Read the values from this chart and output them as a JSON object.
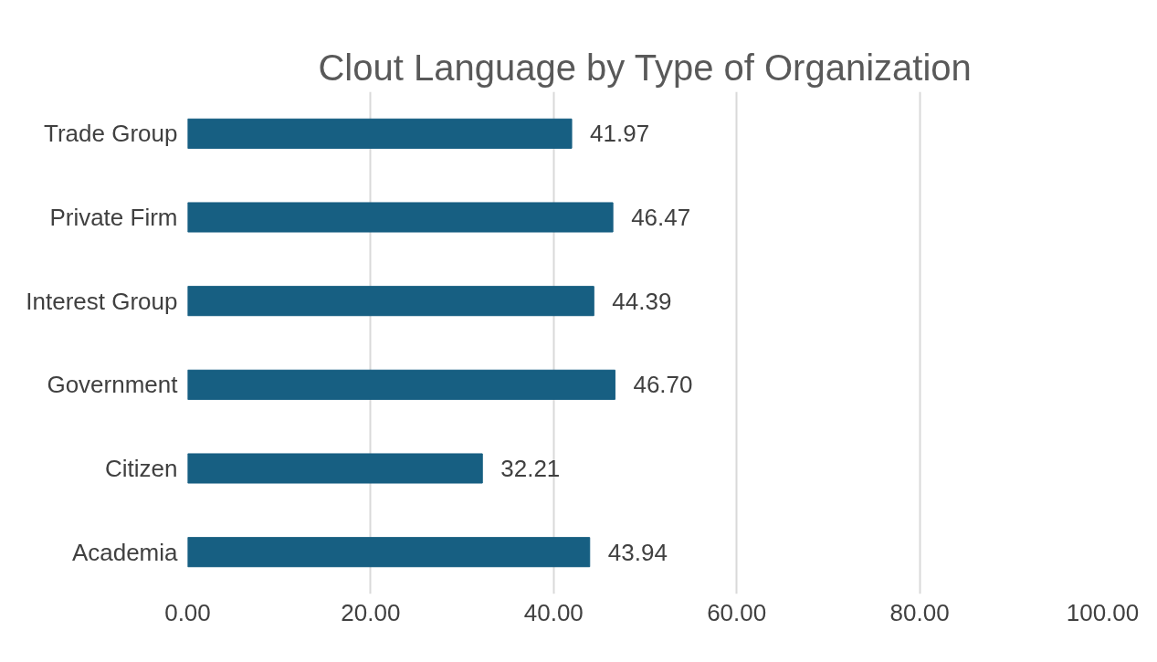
{
  "chart_data": {
    "type": "bar",
    "orientation": "horizontal",
    "title": "Clout Language by Type of Organization",
    "categories": [
      "Trade Group",
      "Private Firm",
      "Interest Group",
      "Government",
      "Citizen",
      "Academia"
    ],
    "values": [
      41.97,
      46.47,
      44.39,
      46.7,
      32.21,
      43.94
    ],
    "value_labels": [
      "41.97",
      "46.47",
      "44.39",
      "46.70",
      "32.21",
      "43.94"
    ],
    "color": "#175f82",
    "xlim": [
      0,
      100
    ],
    "xticks": [
      {
        "value": 0,
        "label": "0.00"
      },
      {
        "value": 20,
        "label": "20.00"
      },
      {
        "value": 40,
        "label": "40.00"
      },
      {
        "value": 60,
        "label": "60.00"
      },
      {
        "value": 80,
        "label": "80.00"
      },
      {
        "value": 100,
        "label": "100.00"
      }
    ],
    "grid": "x"
  }
}
